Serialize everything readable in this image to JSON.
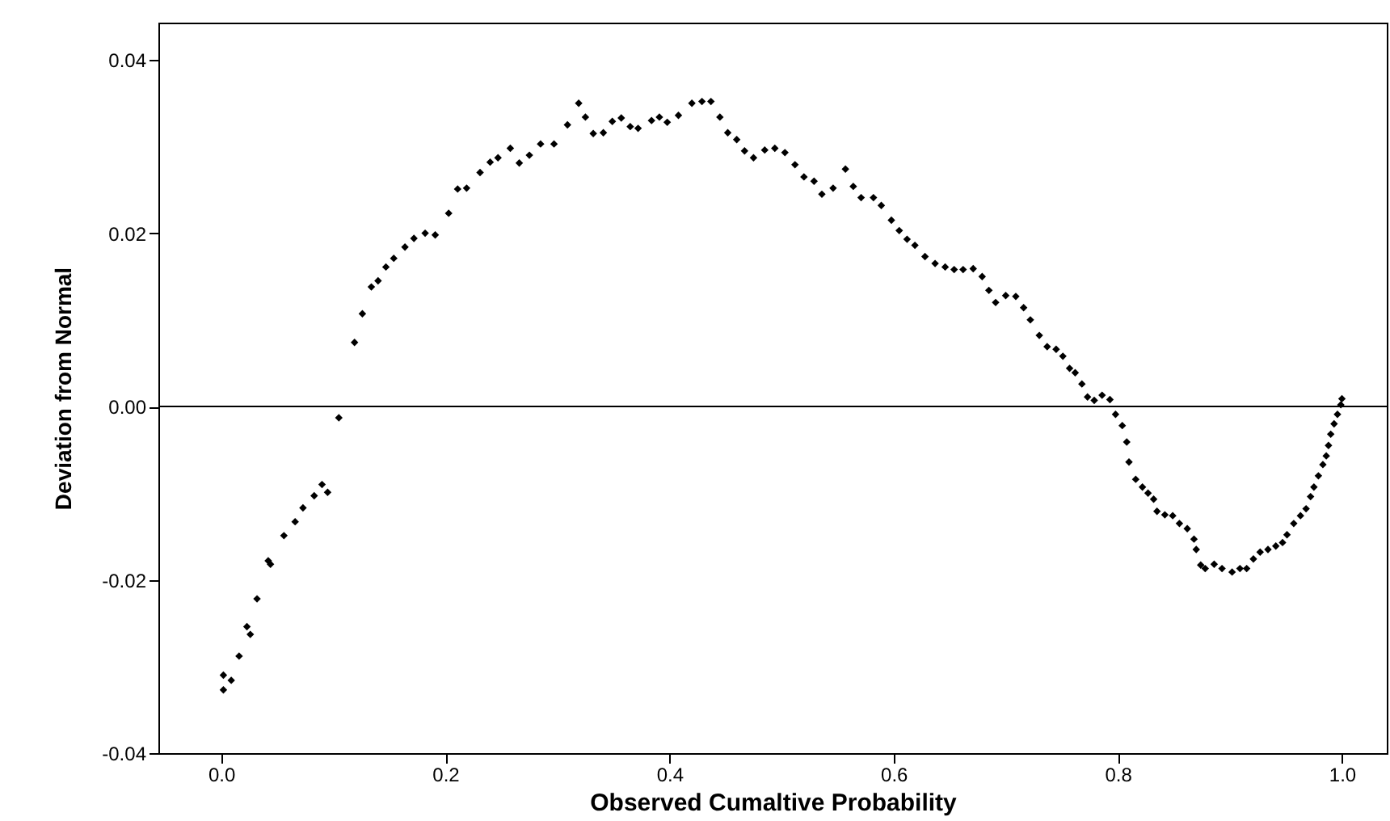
{
  "chart_data": {
    "type": "scatter",
    "xlabel": "Observed Cumaltive Probability",
    "ylabel": "Deviation from Normal",
    "xlim": [
      -0.056,
      1.04
    ],
    "ylim": [
      -0.04,
      0.0443
    ],
    "xticks": [
      {
        "value": 0,
        "label": "0.0"
      },
      {
        "value": 0.2,
        "label": "0.2"
      },
      {
        "value": 0.4,
        "label": "0.4"
      },
      {
        "value": 0.6,
        "label": "0.6"
      },
      {
        "value": 0.8,
        "label": "0.8"
      },
      {
        "value": 1,
        "label": "1.0"
      }
    ],
    "yticks": [
      {
        "value": -0.04,
        "label": "-0.04"
      },
      {
        "value": -0.02,
        "label": "-0.02"
      },
      {
        "value": 0,
        "label": "0.00"
      },
      {
        "value": 0.02,
        "label": "0.02"
      },
      {
        "value": 0.04,
        "label": "0.04"
      }
    ],
    "grid": false,
    "marker": "diamond",
    "ref_lines": [
      {
        "axis": "y",
        "value": 0,
        "color": "#000000"
      }
    ],
    "series": [
      {
        "color": "#000000",
        "x": [
          0.002,
          0.009,
          0.002,
          0.016,
          0.023,
          0.026,
          0.032,
          0.042,
          0.044,
          0.056,
          0.066,
          0.073,
          0.083,
          0.09,
          0.095,
          0.105,
          0.119,
          0.126,
          0.134,
          0.14,
          0.147,
          0.154,
          0.164,
          0.172,
          0.182,
          0.191,
          0.203,
          0.211,
          0.219,
          0.231,
          0.24,
          0.247,
          0.258,
          0.266,
          0.275,
          0.285,
          0.297,
          0.309,
          0.319,
          0.325,
          0.332,
          0.341,
          0.349,
          0.357,
          0.365,
          0.372,
          0.384,
          0.391,
          0.398,
          0.408,
          0.42,
          0.429,
          0.437,
          0.445,
          0.452,
          0.46,
          0.467,
          0.475,
          0.485,
          0.494,
          0.503,
          0.512,
          0.52,
          0.529,
          0.536,
          0.546,
          0.557,
          0.564,
          0.571,
          0.582,
          0.589,
          0.598,
          0.605,
          0.612,
          0.619,
          0.628,
          0.637,
          0.646,
          0.654,
          0.662,
          0.671,
          0.679,
          0.685,
          0.691,
          0.7,
          0.709,
          0.716,
          0.722,
          0.73,
          0.737,
          0.745,
          0.751,
          0.757,
          0.762,
          0.768,
          0.773,
          0.779,
          0.786,
          0.793,
          0.798,
          0.804,
          0.808,
          0.81,
          0.816,
          0.822,
          0.827,
          0.832,
          0.835,
          0.842,
          0.849,
          0.855,
          0.862,
          0.868,
          0.87,
          0.874,
          0.878,
          0.886,
          0.893,
          0.902,
          0.909,
          0.915,
          0.921,
          0.927,
          0.934,
          0.941,
          0.947,
          0.951,
          0.957,
          0.963,
          0.968,
          0.972,
          0.975,
          0.979,
          0.983,
          0.986,
          0.988,
          0.99,
          0.993,
          0.996,
          0.999,
          1.0
        ],
        "values": [
          -0.0327,
          -0.0316,
          -0.031,
          -0.0288,
          -0.0254,
          -0.0263,
          -0.0222,
          -0.0178,
          -0.0182,
          -0.0149,
          -0.0133,
          -0.0117,
          -0.0103,
          -0.009,
          -0.0099,
          -0.0013,
          0.0074,
          0.0107,
          0.0138,
          0.0145,
          0.0161,
          0.0171,
          0.0184,
          0.0194,
          0.02,
          0.0198,
          0.0223,
          0.0251,
          0.0252,
          0.027,
          0.0282,
          0.0287,
          0.0298,
          0.0281,
          0.029,
          0.0303,
          0.0303,
          0.0325,
          0.035,
          0.0334,
          0.0315,
          0.0316,
          0.0329,
          0.0333,
          0.0323,
          0.0321,
          0.033,
          0.0334,
          0.0328,
          0.0336,
          0.035,
          0.0352,
          0.0352,
          0.0334,
          0.0316,
          0.0308,
          0.0295,
          0.0287,
          0.0296,
          0.0298,
          0.0293,
          0.0279,
          0.0265,
          0.026,
          0.0245,
          0.0252,
          0.0274,
          0.0254,
          0.0241,
          0.0241,
          0.0232,
          0.0215,
          0.0203,
          0.0193,
          0.0186,
          0.0173,
          0.0165,
          0.0161,
          0.0158,
          0.0158,
          0.0159,
          0.015,
          0.0134,
          0.012,
          0.0128,
          0.0127,
          0.0114,
          0.01,
          0.0082,
          0.0069,
          0.0066,
          0.0058,
          0.0044,
          0.0039,
          0.0026,
          0.0011,
          0.0007,
          0.0013,
          0.0008,
          -0.0009,
          -0.0022,
          -0.0041,
          -0.0064,
          -0.0084,
          -0.0093,
          -0.01,
          -0.0107,
          -0.0121,
          -0.0125,
          -0.0126,
          -0.0135,
          -0.0141,
          -0.0153,
          -0.0165,
          -0.0183,
          -0.0187,
          -0.0182,
          -0.0187,
          -0.0191,
          -0.0187,
          -0.0187,
          -0.0176,
          -0.0168,
          -0.0165,
          -0.0161,
          -0.0157,
          -0.0148,
          -0.0135,
          -0.0126,
          -0.0118,
          -0.0104,
          -0.0093,
          -0.008,
          -0.0067,
          -0.0057,
          -0.0045,
          -0.0032,
          -0.002,
          -0.0009,
          0.0002,
          0.0009
        ]
      }
    ]
  }
}
